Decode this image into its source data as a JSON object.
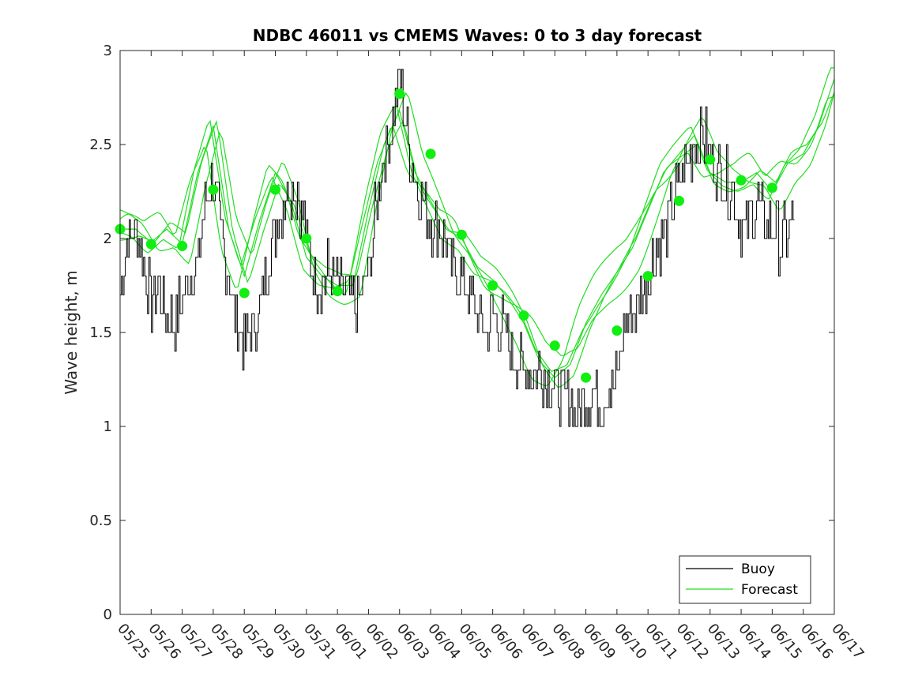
{
  "chart_data": {
    "type": "line",
    "title": "NDBC 46011 vs CMEMS Waves: 0 to 3 day forecast",
    "ylabel": "Wave height, m",
    "xlabel": "",
    "ylim": [
      0,
      3
    ],
    "yticks": [
      0,
      0.5,
      1,
      1.5,
      2,
      2.5,
      3
    ],
    "ytick_labels": [
      "0",
      "0.5",
      "1",
      "1.5",
      "2",
      "2.5",
      "3"
    ],
    "xticks": [
      "05/25",
      "05/26",
      "05/27",
      "05/28",
      "05/29",
      "05/30",
      "05/31",
      "06/01",
      "06/02",
      "06/03",
      "06/04",
      "06/05",
      "06/06",
      "06/07",
      "06/08",
      "06/09",
      "06/10",
      "06/11",
      "06/12",
      "06/13",
      "06/14",
      "06/15",
      "06/16",
      "06/17"
    ],
    "grid": false,
    "legend_position": "bottom-right",
    "colors": {
      "buoy": "#000000",
      "forecast": "#22dd22",
      "markers": "#11ee11",
      "axes": "#262626"
    },
    "buoy": {
      "name": "Buoy",
      "x": [
        0,
        0.25,
        0.5,
        0.75,
        1,
        1.25,
        1.5,
        1.75,
        2,
        2.25,
        2.5,
        2.75,
        3,
        3.25,
        3.5,
        3.75,
        4,
        4.25,
        4.5,
        4.75,
        5,
        5.25,
        5.5,
        5.75,
        6,
        6.25,
        6.5,
        6.75,
        7,
        7.25,
        7.5,
        7.75,
        8,
        8.25,
        8.5,
        8.75,
        9,
        9.25,
        9.5,
        9.75,
        10,
        10.25,
        10.5,
        10.75,
        11,
        11.25,
        11.5,
        11.75,
        12,
        12.25,
        12.5,
        12.75,
        13,
        13.25,
        13.5,
        13.75,
        14,
        14.25,
        14.5,
        14.75,
        15,
        15.25,
        15.5,
        15.75,
        16,
        16.25,
        16.5,
        16.75,
        17,
        17.25,
        17.5,
        17.75,
        18,
        18.25,
        18.5,
        18.75,
        19,
        19.25,
        19.5,
        19.75,
        20,
        20.25,
        20.5,
        20.75,
        21,
        21.25,
        21.5,
        21.75
      ],
      "y": [
        1.7,
        2.0,
        2.05,
        1.9,
        1.65,
        1.75,
        1.6,
        1.55,
        1.7,
        1.8,
        1.85,
        2.2,
        2.3,
        2.0,
        1.8,
        1.55,
        1.45,
        1.5,
        1.6,
        1.9,
        2.05,
        2.2,
        2.3,
        2.25,
        2.0,
        1.8,
        1.75,
        1.85,
        1.75,
        1.7,
        1.65,
        1.7,
        1.8,
        2.2,
        2.45,
        2.6,
        2.85,
        2.55,
        2.3,
        2.2,
        2.1,
        2.05,
        1.95,
        1.85,
        1.8,
        1.7,
        1.6,
        1.5,
        1.6,
        1.55,
        1.45,
        1.35,
        1.3,
        1.3,
        1.3,
        1.25,
        1.2,
        1.15,
        1.15,
        1.05,
        1.15,
        1.2,
        1.15,
        1.2,
        1.25,
        1.55,
        1.6,
        1.7,
        1.8,
        1.95,
        2.0,
        2.15,
        2.3,
        2.4,
        2.5,
        2.55,
        2.45,
        2.35,
        2.3,
        2.25,
        2.05,
        2.1,
        2.2,
        2.1,
        2.05,
        2.0,
        2.0,
        2.15
      ]
    },
    "forecast": {
      "name": "Forecast",
      "x": [
        0,
        0.5,
        1,
        1.5,
        2,
        2.5,
        3,
        3.5,
        4,
        4.5,
        5,
        5.5,
        6,
        6.5,
        7,
        7.5,
        8,
        8.5,
        9,
        9.5,
        10,
        10.5,
        11,
        11.5,
        12,
        12.5,
        13,
        13.5,
        14,
        14.5,
        15,
        15.5,
        16,
        16.5,
        17,
        17.5,
        18,
        18.5,
        19,
        19.5,
        20,
        20.5,
        21,
        21.5,
        22,
        22.5,
        23
      ],
      "y": [
        2.05,
        2.05,
        1.98,
        2.05,
        1.97,
        2.35,
        2.6,
        2.05,
        1.8,
        2.1,
        2.35,
        2.2,
        1.9,
        1.8,
        1.75,
        1.75,
        2.15,
        2.5,
        2.68,
        2.35,
        2.2,
        2.05,
        2.0,
        1.85,
        1.78,
        1.68,
        1.55,
        1.35,
        1.26,
        1.33,
        1.55,
        1.7,
        1.82,
        1.95,
        2.15,
        2.35,
        2.45,
        2.55,
        2.35,
        2.3,
        2.3,
        2.35,
        2.25,
        2.4,
        2.45,
        2.6,
        2.85
      ]
    },
    "forecast_offsets": [
      0,
      -0.06,
      0.06,
      -0.11,
      0.11
    ],
    "forecast_phase_shifts": [
      0,
      0.12,
      -0.12,
      0.24,
      -0.24
    ],
    "markers": {
      "x": [
        0,
        1,
        2,
        3,
        4,
        5,
        6,
        7,
        8,
        9,
        10,
        11,
        12,
        13,
        14,
        15,
        16,
        17,
        18,
        19,
        20,
        21
      ],
      "y": [
        2.05,
        1.97,
        1.96,
        2.26,
        1.71,
        2.26,
        2.0,
        1.72,
        null,
        2.77,
        2.45,
        2.02,
        1.75,
        1.59,
        1.43,
        1.26,
        1.51,
        1.8,
        2.2,
        2.42,
        2.31,
        2.27
      ]
    },
    "legend": [
      {
        "label": "Buoy",
        "color": "#000000"
      },
      {
        "label": "Forecast",
        "color": "#22dd22"
      }
    ]
  }
}
